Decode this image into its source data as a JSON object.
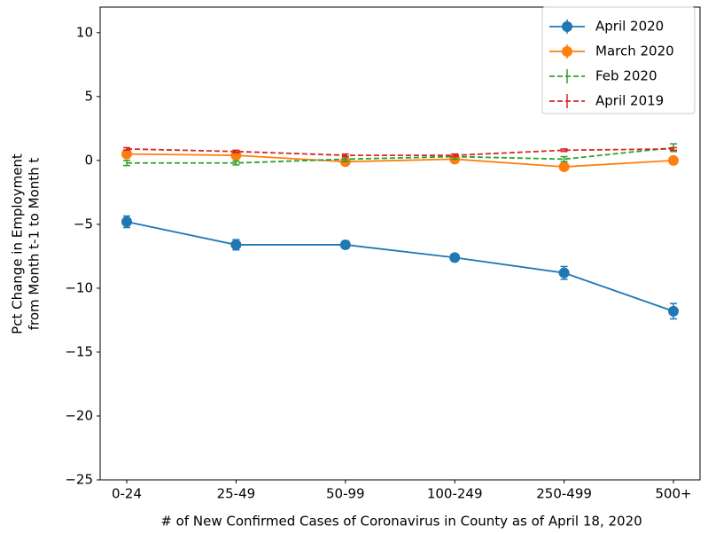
{
  "chart_data": {
    "type": "line",
    "xlabel": "# of New Confirmed Cases of Coronavirus in County as of April 18, 2020",
    "ylabel": [
      "Pct Change in Employment",
      "from Month t-1 to Month t"
    ],
    "categories": [
      "0-24",
      "25-49",
      "50-99",
      "100-249",
      "250-499",
      "500+"
    ],
    "series": [
      {
        "name": "April 2020",
        "color": "#1f77b4",
        "dashed": false,
        "marker": true,
        "values": [
          -4.8,
          -6.6,
          -6.6,
          -7.6,
          -8.8,
          -11.8
        ],
        "errors": [
          0.45,
          0.4,
          0.3,
          0.2,
          0.5,
          0.6
        ]
      },
      {
        "name": "March 2020",
        "color": "#ff7f0e",
        "dashed": false,
        "marker": true,
        "values": [
          0.5,
          0.4,
          -0.1,
          0.1,
          -0.5,
          0.0
        ],
        "errors": [
          0.1,
          0.1,
          0.1,
          0.1,
          0.1,
          0.1
        ]
      },
      {
        "name": "Feb 2020",
        "color": "#2ca02c",
        "dashed": true,
        "marker": false,
        "values": [
          -0.2,
          -0.2,
          0.1,
          0.3,
          0.1,
          1.0
        ],
        "errors": [
          0.2,
          0.15,
          0.2,
          0.2,
          0.2,
          0.3
        ]
      },
      {
        "name": "April 2019",
        "color": "#d62728",
        "dashed": true,
        "marker": false,
        "values": [
          0.9,
          0.7,
          0.4,
          0.4,
          0.8,
          0.9
        ],
        "errors": [
          0.1,
          0.1,
          0.1,
          0.1,
          0.1,
          0.1
        ]
      }
    ],
    "ylim": [
      -25,
      12
    ],
    "yticks": [
      {
        "value": -25,
        "label": "−25"
      },
      {
        "value": -20,
        "label": "−20"
      },
      {
        "value": -15,
        "label": "−15"
      },
      {
        "value": -10,
        "label": "−10"
      },
      {
        "value": -5,
        "label": "−5"
      },
      0,
      5,
      10
    ],
    "grid": false,
    "legend": "upper right"
  }
}
